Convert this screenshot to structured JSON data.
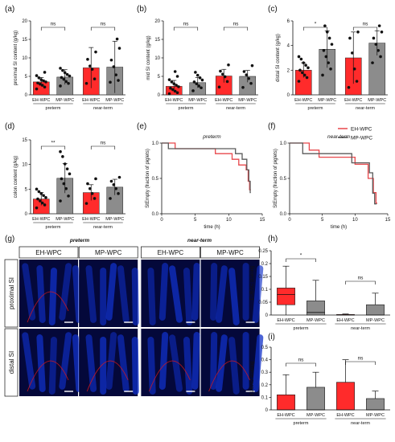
{
  "colors": {
    "eh": "#ff2b2b",
    "mp": "#8c8c8c",
    "eh_line": "#e8474b",
    "mp_line": "#595959",
    "micro_bg": "#04083a",
    "micro_cell": "#1030c8",
    "micro_red": "#e01818"
  },
  "chart_data": [
    {
      "id": "a",
      "type": "bar",
      "panel_label": "(a)",
      "ylabel": "proximal SI content (g/kg)",
      "ylim": [
        0,
        20
      ],
      "yticks": [
        0,
        5,
        10,
        15,
        20
      ],
      "categories": [
        "EH-WPC",
        "MP-WPC",
        "EH-WPC",
        "MP-WPC"
      ],
      "groups": [
        "preterm",
        "near-term"
      ],
      "values": [
        3.5,
        4.8,
        7.3,
        7.5
      ],
      "errors": [
        1.2,
        2.0,
        5.5,
        7.0
      ],
      "points": [
        [
          1.6,
          2.1,
          2.6,
          2.9,
          3.2,
          3.5,
          3.8,
          4.1,
          4.6,
          5.2,
          6.1
        ],
        [
          2.4,
          3.1,
          3.6,
          4.2,
          4.7,
          5.1,
          5.5,
          6.0,
          6.6,
          7.2
        ],
        [
          3.1,
          4.3,
          6.9,
          7.8,
          9.6,
          11.6
        ],
        [
          3.4,
          3.9,
          5.4,
          7.6,
          9.4,
          12.6,
          15.1
        ]
      ],
      "significance": [
        "ns",
        "ns"
      ]
    },
    {
      "id": "b",
      "type": "bar",
      "panel_label": "(b)",
      "ylabel": "mid SI content (g/kg)",
      "ylim": [
        0,
        20
      ],
      "yticks": [
        0,
        5,
        10,
        15,
        20
      ],
      "categories": [
        "EH-WPC",
        "MP-WPC",
        "EH-WPC",
        "MP-WPC"
      ],
      "groups": [
        "preterm",
        "near-term"
      ],
      "values": [
        2.3,
        3.3,
        5.1,
        5.0
      ],
      "errors": [
        1.6,
        1.4,
        1.8,
        1.6
      ],
      "points": [
        [
          0.3,
          0.6,
          1.0,
          1.4,
          1.8,
          2.2,
          2.6,
          3.0,
          3.5,
          4.1,
          5.0,
          6.3
        ],
        [
          1.1,
          1.9,
          2.4,
          3.0,
          3.5,
          4.0,
          4.6,
          5.3,
          6.1
        ],
        [
          2.1,
          3.6,
          4.9,
          5.6,
          6.4,
          8.1
        ],
        [
          2.0,
          3.1,
          4.4,
          5.4,
          6.3,
          7.9
        ]
      ],
      "significance": [
        "ns",
        "ns"
      ]
    },
    {
      "id": "c",
      "type": "bar",
      "panel_label": "(c)",
      "ylabel": "distal SI content (g/kg)",
      "ylim": [
        0,
        6
      ],
      "yticks": [
        0,
        2,
        4,
        6
      ],
      "categories": [
        "EH-WPC",
        "MP-WPC",
        "EH-WPC",
        "MP-WPC"
      ],
      "groups": [
        "preterm",
        "near-term"
      ],
      "values": [
        2.0,
        3.7,
        3.0,
        4.2
      ],
      "errors": [
        0.6,
        1.5,
        2.1,
        1.0
      ],
      "points": [
        [
          1.1,
          1.4,
          1.6,
          1.8,
          2.0,
          2.2,
          2.4,
          2.6,
          2.9,
          3.1
        ],
        [
          1.6,
          2.1,
          2.6,
          3.1,
          3.6,
          4.1,
          4.6,
          5.1,
          5.6
        ],
        [
          0.6,
          1.1,
          2.1,
          3.4,
          4.6,
          5.1
        ],
        [
          2.6,
          3.1,
          3.6,
          4.1,
          4.6,
          5.1,
          5.6
        ]
      ],
      "significance": [
        "*",
        "ns"
      ]
    },
    {
      "id": "d",
      "type": "bar",
      "panel_label": "(d)",
      "ylabel": "colon content (g/kg)",
      "ylim": [
        0,
        15
      ],
      "yticks": [
        0,
        5,
        10,
        15
      ],
      "categories": [
        "EH-WPC",
        "MP-WPC",
        "EH-WPC",
        "MP-WPC"
      ],
      "groups": [
        "preterm",
        "near-term"
      ],
      "values": [
        3.0,
        7.2,
        4.3,
        5.4
      ],
      "errors": [
        1.3,
        3.0,
        1.6,
        1.6
      ],
      "points": [
        [
          1.2,
          1.8,
          2.2,
          2.6,
          3.0,
          3.3,
          3.7,
          4.1,
          4.5,
          5.0
        ],
        [
          2.6,
          3.6,
          5.1,
          6.1,
          7.1,
          8.1,
          9.1,
          10.1,
          11.6,
          12.6
        ],
        [
          2.1,
          3.1,
          4.1,
          5.1,
          6.1,
          7.1
        ],
        [
          3.1,
          4.1,
          5.1,
          5.9,
          6.6,
          7.4
        ]
      ],
      "significance": [
        "**",
        "ns"
      ]
    },
    {
      "id": "e",
      "type": "line",
      "panel_label": "(e)",
      "title": "preterm",
      "xlabel": "time (h)",
      "ylabel": "StEmpty (fraction of piglets)",
      "xlim": [
        0,
        15
      ],
      "ylim": [
        0,
        1
      ],
      "xticks": [
        0,
        5,
        10,
        15
      ],
      "yticks": [
        0.0,
        0.5,
        1.0
      ],
      "series": [
        {
          "name": "EH-WPC",
          "x": [
            0,
            2,
            2,
            8,
            8,
            10.5,
            10.5,
            11.5,
            11.5,
            12.6,
            12.6,
            12.9,
            12.9,
            13.1,
            13.1,
            13.3
          ],
          "y": [
            1,
            1,
            0.92,
            0.92,
            0.85,
            0.85,
            0.77,
            0.77,
            0.69,
            0.69,
            0.62,
            0.62,
            0.46,
            0.46,
            0.34,
            0.34
          ]
        },
        {
          "name": "MP-WPC",
          "x": [
            0,
            1,
            1,
            11,
            11,
            12,
            12,
            12.7,
            12.7,
            13.0,
            13.0,
            13.2,
            13.2,
            13.3
          ],
          "y": [
            1,
            1,
            0.92,
            0.92,
            0.85,
            0.85,
            0.77,
            0.77,
            0.62,
            0.62,
            0.46,
            0.46,
            0.3,
            0.3
          ]
        }
      ]
    },
    {
      "id": "f",
      "type": "line",
      "panel_label": "(f)",
      "title": "near-term",
      "xlabel": "time (h)",
      "ylabel": "StEmpty (fraction of piglets)",
      "xlim": [
        0,
        15
      ],
      "ylim": [
        0,
        1
      ],
      "xticks": [
        0,
        5,
        10,
        15
      ],
      "yticks": [
        0.0,
        0.5,
        1.0
      ],
      "series": [
        {
          "name": "EH-WPC",
          "x": [
            0,
            3,
            3,
            4.5,
            4.5,
            10,
            10,
            12,
            12,
            12.8,
            12.8,
            13.2,
            13.2,
            13.4
          ],
          "y": [
            1,
            1,
            0.9,
            0.9,
            0.8,
            0.8,
            0.7,
            0.7,
            0.5,
            0.5,
            0.3,
            0.3,
            0.15,
            0.15
          ]
        },
        {
          "name": "MP-WPC",
          "x": [
            0,
            2,
            2,
            9.5,
            9.5,
            12.2,
            12.2,
            12.7,
            12.7,
            13.0,
            13.0,
            13.3
          ],
          "y": [
            1,
            1,
            0.85,
            0.85,
            0.72,
            0.72,
            0.58,
            0.58,
            0.29,
            0.29,
            0.14,
            0.14
          ]
        }
      ],
      "legend": [
        "EH-WPC",
        "MP-WPC"
      ]
    },
    {
      "id": "h",
      "type": "box",
      "panel_label": "(h)",
      "ylabel": "EUBAC staining",
      "ylim": [
        0,
        0.25
      ],
      "yticks": [
        0.0,
        0.05,
        0.1,
        0.15,
        0.2,
        0.25
      ],
      "categories": [
        "EH-WPC",
        "MP-WPC",
        "EH-WPC",
        "MP-WPC"
      ],
      "groups": [
        "preterm",
        "near-term"
      ],
      "boxes": [
        {
          "min": 0.0,
          "q1": 0.04,
          "median": 0.08,
          "q3": 0.105,
          "max": 0.19
        },
        {
          "min": 0.0,
          "q1": 0.0,
          "median": 0.01,
          "q3": 0.055,
          "max": 0.135
        },
        {
          "min": 0.0,
          "q1": 0.0,
          "median": 0.0,
          "q3": 0.002,
          "max": 0.004
        },
        {
          "min": 0.0,
          "q1": 0.0,
          "median": 0.0,
          "q3": 0.04,
          "max": 0.085
        }
      ],
      "significance": [
        "*",
        "ns"
      ]
    },
    {
      "id": "i",
      "type": "box",
      "panel_label": "(i)",
      "ylabel": "EUBAC staining",
      "ylim": [
        0,
        0.5
      ],
      "yticks": [
        0.0,
        0.1,
        0.2,
        0.3,
        0.4,
        0.5
      ],
      "categories": [
        "EH-WPC",
        "MP-WPC",
        "EH-WPC",
        "MP-WPC"
      ],
      "groups": [
        "preterm",
        "near-term"
      ],
      "boxes": [
        {
          "min": 0.0,
          "q1": 0.0,
          "median": 0.0,
          "q3": 0.12,
          "max": 0.28
        },
        {
          "min": 0.0,
          "q1": 0.0,
          "median": 0.0,
          "q3": 0.18,
          "max": 0.3
        },
        {
          "min": 0.0,
          "q1": 0.0,
          "median": 0.0,
          "q3": 0.22,
          "max": 0.4
        },
        {
          "min": 0.0,
          "q1": 0.0,
          "median": 0.0,
          "q3": 0.09,
          "max": 0.15
        }
      ],
      "significance": [
        "ns",
        "ns"
      ]
    }
  ],
  "micro": {
    "panel_label": "(g)",
    "group_titles": [
      "preterm",
      "near-term"
    ],
    "columns": [
      "EH-WPC",
      "MP-WPC",
      "EH-WPC",
      "MP-WPC"
    ],
    "rows": [
      "proximal SI",
      "distal SI"
    ]
  }
}
